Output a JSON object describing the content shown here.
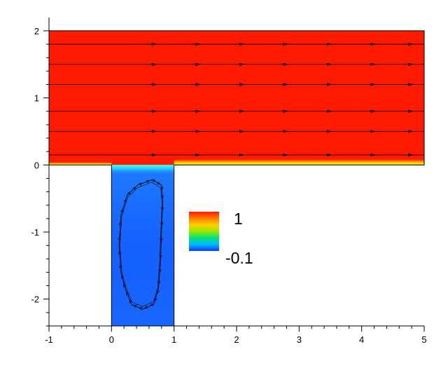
{
  "chart_data": {
    "type": "heatmap",
    "title": "",
    "xlabel": "",
    "ylabel": "",
    "xlim": [
      -1,
      5
    ],
    "ylim": [
      -2.4,
      2.1
    ],
    "x_major_ticks": [
      -1,
      0,
      1,
      2,
      3,
      4,
      5
    ],
    "x_tick_labels": [
      "-1",
      "0",
      "1",
      "2",
      "3",
      "4",
      "5"
    ],
    "y_major_ticks": [
      -2,
      -1,
      0,
      1,
      2
    ],
    "y_tick_labels": [
      "-2",
      "-1",
      "0",
      "1",
      "2"
    ],
    "domain": {
      "channel": {
        "x": [
          -0.0,
          5
        ],
        "y": [
          0,
          2
        ]
      },
      "cavity": {
        "x": [
          0,
          1
        ],
        "y": [
          -2.5,
          0
        ]
      }
    },
    "colorbar": {
      "max_label": "1",
      "min_label": "-0.1",
      "max_value": 1,
      "min_value": -0.1,
      "colors": [
        "#0a3cff",
        "#00b8ff",
        "#00e37a",
        "#9ae600",
        "#ffd000",
        "#ff7a00",
        "#ff1a00"
      ]
    },
    "channel_value": 1,
    "cavity_value": -0.05,
    "streamlines_channel_y": [
      1.8,
      1.5,
      1.2,
      0.8,
      0.5,
      0.15
    ],
    "streamline_arrow_x": [
      0.7,
      1.4,
      2.1,
      2.8,
      3.5,
      4.2,
      4.8
    ],
    "vortex_loop": [
      [
        0.22,
        -1.85
      ],
      [
        0.15,
        -1.6
      ],
      [
        0.12,
        -1.2
      ],
      [
        0.15,
        -0.75
      ],
      [
        0.25,
        -0.45
      ],
      [
        0.42,
        -0.3
      ],
      [
        0.65,
        -0.22
      ],
      [
        0.8,
        -0.3
      ],
      [
        0.82,
        -0.55
      ],
      [
        0.8,
        -1.0
      ],
      [
        0.78,
        -1.5
      ],
      [
        0.75,
        -1.85
      ],
      [
        0.68,
        -2.07
      ],
      [
        0.5,
        -2.15
      ],
      [
        0.32,
        -2.08
      ],
      [
        0.22,
        -1.85
      ]
    ]
  }
}
